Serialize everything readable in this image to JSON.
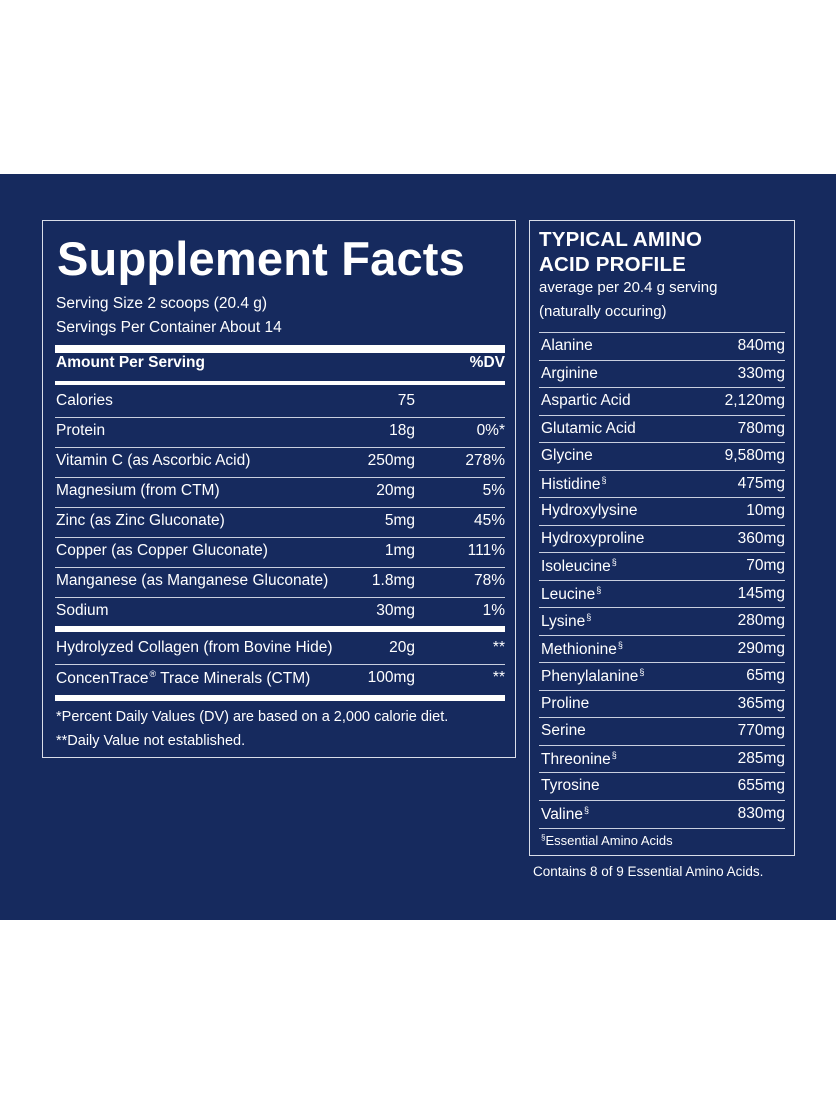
{
  "colors": {
    "panel_background": "#162a5e",
    "text": "#ffffff",
    "page_background": "#ffffff"
  },
  "supplement_facts": {
    "title": "Supplement Facts",
    "serving_size": "Serving Size 2 scoops (20.4 g)",
    "servings_per_container": "Servings Per Container About 14",
    "header_amount": "Amount Per Serving",
    "header_dv": "%DV",
    "rows": [
      {
        "name": "Calories",
        "amount": "75",
        "dv": ""
      },
      {
        "name": "Protein",
        "amount": "18g",
        "dv": "0%*"
      },
      {
        "name": "Vitamin C (as Ascorbic Acid)",
        "amount": "250mg",
        "dv": "278%"
      },
      {
        "name": "Magnesium (from CTM)",
        "amount": "20mg",
        "dv": "5%"
      },
      {
        "name": "Zinc (as Zinc Gluconate)",
        "amount": "5mg",
        "dv": "45%"
      },
      {
        "name": "Copper (as Copper Gluconate)",
        "amount": "1mg",
        "dv": "111%"
      },
      {
        "name": "Manganese (as Manganese Gluconate)",
        "amount": "1.8mg",
        "dv": "78%"
      },
      {
        "name": "Sodium",
        "amount": "30mg",
        "dv": "1%"
      }
    ],
    "other_rows": [
      {
        "name": "Hydrolyzed Collagen (from Bovine Hide)",
        "amount": "20g",
        "dv": "**"
      },
      {
        "name": "ConcenTrace",
        "name_mark": "®",
        "name_rest": " Trace Minerals (CTM)",
        "amount": "100mg",
        "dv": "**"
      }
    ],
    "footnote_1": "*Percent Daily Values (DV) are based on a 2,000 calorie diet.",
    "footnote_2": "**Daily Value not established."
  },
  "amino_profile": {
    "title_line1": "TYPICAL AMINO",
    "title_line2": "ACID PROFILE",
    "subtitle_line1": "average per 20.4 g serving",
    "subtitle_line2": "(naturally occuring)",
    "essential_mark": "§",
    "rows": [
      {
        "name": "Alanine",
        "value": "840mg",
        "mark": ""
      },
      {
        "name": "Arginine",
        "value": "330mg",
        "mark": ""
      },
      {
        "name": "Aspartic Acid",
        "value": "2,120mg",
        "mark": ""
      },
      {
        "name": "Glutamic Acid",
        "value": "780mg",
        "mark": ""
      },
      {
        "name": "Glycine",
        "value": "9,580mg",
        "mark": ""
      },
      {
        "name": "Histidine",
        "value": "475mg",
        "mark": "§"
      },
      {
        "name": "Hydroxylysine",
        "value": "10mg",
        "mark": ""
      },
      {
        "name": "Hydroxyproline",
        "value": "360mg",
        "mark": ""
      },
      {
        "name": "Isoleucine",
        "value": "70mg",
        "mark": "§"
      },
      {
        "name": "Leucine",
        "value": "145mg",
        "mark": "§"
      },
      {
        "name": "Lysine",
        "value": "280mg",
        "mark": "§"
      },
      {
        "name": "Methionine",
        "value": "290mg",
        "mark": "§"
      },
      {
        "name": "Phenylalanine",
        "value": "65mg",
        "mark": "§"
      },
      {
        "name": "Proline",
        "value": "365mg",
        "mark": ""
      },
      {
        "name": "Serine",
        "value": "770mg",
        "mark": ""
      },
      {
        "name": "Threonine",
        "value": "285mg",
        "mark": "§"
      },
      {
        "name": "Tyrosine",
        "value": "655mg",
        "mark": ""
      },
      {
        "name": "Valine",
        "value": "830mg",
        "mark": "§"
      }
    ],
    "footnote": "Essential Amino Acids",
    "contains_note": "Contains 8 of 9 Essential Amino Acids."
  }
}
